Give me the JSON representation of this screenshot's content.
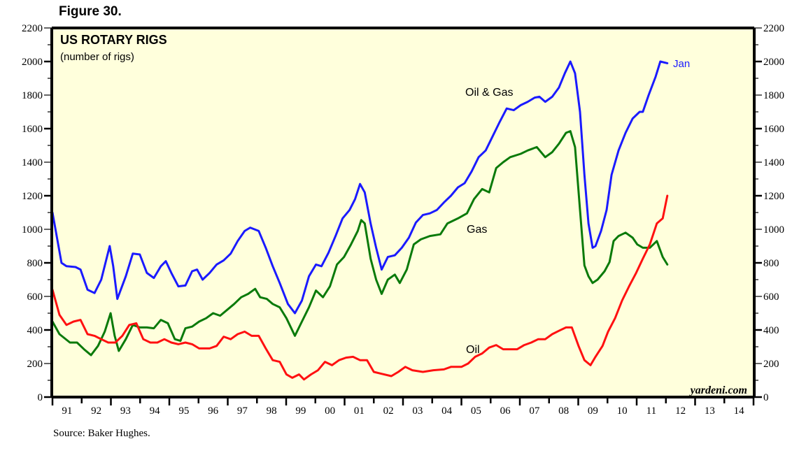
{
  "figure_label": "Figure 30.",
  "source": "Source: Baker Hughes.",
  "watermark": "yardeni.com",
  "colors": {
    "oil_gas": "#1a1aff",
    "gas": "#0a7a0a",
    "oil": "#ff1010",
    "background": "#ffffdc"
  },
  "chart_data": {
    "type": "line",
    "title": "US ROTARY RIGS",
    "subtitle": "(number of rigs)",
    "ylim": [
      0,
      2200
    ],
    "xlim": [
      1991,
      2015
    ],
    "y_ticks": [
      0,
      200,
      400,
      600,
      800,
      1000,
      1200,
      1400,
      1600,
      1800,
      2000,
      2200
    ],
    "x_tick_labels": [
      "91",
      "92",
      "93",
      "94",
      "95",
      "96",
      "97",
      "98",
      "99",
      "00",
      "01",
      "02",
      "03",
      "04",
      "05",
      "06",
      "07",
      "08",
      "09",
      "10",
      "11",
      "12",
      "13",
      "14"
    ],
    "grid": false,
    "end_label": "Jan",
    "series": [
      {
        "name": "Oil & Gas",
        "color": "#1a1aff",
        "points": [
          [
            1991.0,
            1100
          ],
          [
            1991.31,
            800
          ],
          [
            1991.48,
            780
          ],
          [
            1991.79,
            775
          ],
          [
            1991.96,
            760
          ],
          [
            1992.2,
            640
          ],
          [
            1992.44,
            620
          ],
          [
            1992.67,
            700
          ],
          [
            1992.96,
            900
          ],
          [
            1993.08,
            780
          ],
          [
            1993.22,
            585
          ],
          [
            1993.51,
            720
          ],
          [
            1993.75,
            855
          ],
          [
            1993.99,
            850
          ],
          [
            1994.23,
            740
          ],
          [
            1994.47,
            710
          ],
          [
            1994.71,
            780
          ],
          [
            1994.88,
            810
          ],
          [
            1995.07,
            740
          ],
          [
            1995.31,
            660
          ],
          [
            1995.55,
            665
          ],
          [
            1995.78,
            750
          ],
          [
            1995.95,
            760
          ],
          [
            1996.14,
            700
          ],
          [
            1996.38,
            740
          ],
          [
            1996.62,
            790
          ],
          [
            1996.86,
            815
          ],
          [
            1997.1,
            855
          ],
          [
            1997.34,
            930
          ],
          [
            1997.58,
            990
          ],
          [
            1997.77,
            1010
          ],
          [
            1998.06,
            990
          ],
          [
            1998.3,
            890
          ],
          [
            1998.54,
            780
          ],
          [
            1998.78,
            680
          ],
          [
            1999.06,
            555
          ],
          [
            1999.3,
            500
          ],
          [
            1999.54,
            575
          ],
          [
            1999.78,
            720
          ],
          [
            2000.02,
            790
          ],
          [
            2000.21,
            780
          ],
          [
            2000.45,
            860
          ],
          [
            2000.69,
            960
          ],
          [
            2000.93,
            1065
          ],
          [
            2001.17,
            1115
          ],
          [
            2001.36,
            1180
          ],
          [
            2001.53,
            1270
          ],
          [
            2001.69,
            1220
          ],
          [
            2001.89,
            1035
          ],
          [
            2002.08,
            890
          ],
          [
            2002.27,
            760
          ],
          [
            2002.48,
            835
          ],
          [
            2002.72,
            845
          ],
          [
            2002.96,
            890
          ],
          [
            2003.2,
            950
          ],
          [
            2003.44,
            1040
          ],
          [
            2003.68,
            1085
          ],
          [
            2003.92,
            1095
          ],
          [
            2004.16,
            1115
          ],
          [
            2004.4,
            1160
          ],
          [
            2004.64,
            1200
          ],
          [
            2004.88,
            1250
          ],
          [
            2005.11,
            1275
          ],
          [
            2005.35,
            1345
          ],
          [
            2005.59,
            1430
          ],
          [
            2005.83,
            1470
          ],
          [
            2006.07,
            1555
          ],
          [
            2006.31,
            1640
          ],
          [
            2006.55,
            1720
          ],
          [
            2006.79,
            1710
          ],
          [
            2007.03,
            1740
          ],
          [
            2007.27,
            1760
          ],
          [
            2007.51,
            1785
          ],
          [
            2007.67,
            1790
          ],
          [
            2007.87,
            1760
          ],
          [
            2008.11,
            1790
          ],
          [
            2008.34,
            1845
          ],
          [
            2008.54,
            1930
          ],
          [
            2008.73,
            2000
          ],
          [
            2008.89,
            1930
          ],
          [
            2009.06,
            1700
          ],
          [
            2009.21,
            1325
          ],
          [
            2009.35,
            1035
          ],
          [
            2009.49,
            890
          ],
          [
            2009.59,
            900
          ],
          [
            2009.78,
            990
          ],
          [
            2009.97,
            1115
          ],
          [
            2010.14,
            1325
          ],
          [
            2010.38,
            1470
          ],
          [
            2010.62,
            1575
          ],
          [
            2010.86,
            1660
          ],
          [
            2011.1,
            1700
          ],
          [
            2011.21,
            1700
          ],
          [
            2011.41,
            1800
          ],
          [
            2011.65,
            1910
          ],
          [
            2011.81,
            2000
          ],
          [
            2012.05,
            1990
          ]
        ]
      },
      {
        "name": "Gas",
        "color": "#0a7a0a",
        "points": [
          [
            1991.0,
            450
          ],
          [
            1991.24,
            375
          ],
          [
            1991.6,
            325
          ],
          [
            1991.84,
            325
          ],
          [
            1992.08,
            285
          ],
          [
            1992.32,
            250
          ],
          [
            1992.56,
            305
          ],
          [
            1992.79,
            390
          ],
          [
            1992.99,
            500
          ],
          [
            1993.13,
            365
          ],
          [
            1993.27,
            275
          ],
          [
            1993.51,
            345
          ],
          [
            1993.75,
            430
          ],
          [
            1993.99,
            415
          ],
          [
            1994.23,
            415
          ],
          [
            1994.47,
            410
          ],
          [
            1994.71,
            460
          ],
          [
            1994.95,
            440
          ],
          [
            1995.19,
            345
          ],
          [
            1995.38,
            335
          ],
          [
            1995.55,
            410
          ],
          [
            1995.78,
            420
          ],
          [
            1996.02,
            450
          ],
          [
            1996.26,
            470
          ],
          [
            1996.5,
            500
          ],
          [
            1996.74,
            485
          ],
          [
            1996.98,
            520
          ],
          [
            1997.22,
            555
          ],
          [
            1997.46,
            595
          ],
          [
            1997.7,
            615
          ],
          [
            1997.94,
            645
          ],
          [
            1998.11,
            595
          ],
          [
            1998.34,
            585
          ],
          [
            1998.54,
            555
          ],
          [
            1998.78,
            535
          ],
          [
            1999.01,
            470
          ],
          [
            1999.3,
            365
          ],
          [
            1999.54,
            450
          ],
          [
            1999.78,
            535
          ],
          [
            2000.02,
            635
          ],
          [
            2000.26,
            595
          ],
          [
            2000.5,
            660
          ],
          [
            2000.74,
            790
          ],
          [
            2000.98,
            835
          ],
          [
            2001.22,
            910
          ],
          [
            2001.45,
            990
          ],
          [
            2001.57,
            1055
          ],
          [
            2001.69,
            1035
          ],
          [
            2001.89,
            825
          ],
          [
            2002.08,
            700
          ],
          [
            2002.27,
            615
          ],
          [
            2002.48,
            700
          ],
          [
            2002.72,
            730
          ],
          [
            2002.89,
            680
          ],
          [
            2003.13,
            760
          ],
          [
            2003.37,
            910
          ],
          [
            2003.61,
            940
          ],
          [
            2003.92,
            960
          ],
          [
            2004.28,
            970
          ],
          [
            2004.52,
            1035
          ],
          [
            2004.88,
            1065
          ],
          [
            2005.19,
            1095
          ],
          [
            2005.43,
            1180
          ],
          [
            2005.71,
            1240
          ],
          [
            2005.95,
            1220
          ],
          [
            2006.19,
            1365
          ],
          [
            2006.43,
            1400
          ],
          [
            2006.67,
            1430
          ],
          [
            2007.03,
            1450
          ],
          [
            2007.27,
            1470
          ],
          [
            2007.58,
            1490
          ],
          [
            2007.87,
            1430
          ],
          [
            2008.11,
            1460
          ],
          [
            2008.34,
            1510
          ],
          [
            2008.58,
            1575
          ],
          [
            2008.73,
            1585
          ],
          [
            2008.89,
            1490
          ],
          [
            2009.06,
            1115
          ],
          [
            2009.21,
            785
          ],
          [
            2009.35,
            720
          ],
          [
            2009.49,
            680
          ],
          [
            2009.66,
            700
          ],
          [
            2009.9,
            750
          ],
          [
            2010.07,
            805
          ],
          [
            2010.21,
            930
          ],
          [
            2010.38,
            960
          ],
          [
            2010.62,
            980
          ],
          [
            2010.86,
            950
          ],
          [
            2011.02,
            910
          ],
          [
            2011.21,
            890
          ],
          [
            2011.45,
            890
          ],
          [
            2011.69,
            930
          ],
          [
            2011.89,
            835
          ],
          [
            2012.05,
            790
          ]
        ]
      },
      {
        "name": "Oil",
        "color": "#ff1010",
        "points": [
          [
            1991.0,
            640
          ],
          [
            1991.24,
            490
          ],
          [
            1991.48,
            430
          ],
          [
            1991.72,
            450
          ],
          [
            1991.96,
            460
          ],
          [
            1992.2,
            375
          ],
          [
            1992.44,
            365
          ],
          [
            1992.67,
            345
          ],
          [
            1992.91,
            325
          ],
          [
            1993.15,
            325
          ],
          [
            1993.39,
            365
          ],
          [
            1993.63,
            430
          ],
          [
            1993.87,
            440
          ],
          [
            1994.11,
            345
          ],
          [
            1994.35,
            325
          ],
          [
            1994.59,
            325
          ],
          [
            1994.83,
            345
          ],
          [
            1995.07,
            325
          ],
          [
            1995.31,
            315
          ],
          [
            1995.55,
            325
          ],
          [
            1995.78,
            315
          ],
          [
            1996.02,
            290
          ],
          [
            1996.38,
            290
          ],
          [
            1996.62,
            305
          ],
          [
            1996.86,
            360
          ],
          [
            1997.1,
            345
          ],
          [
            1997.34,
            375
          ],
          [
            1997.58,
            390
          ],
          [
            1997.82,
            365
          ],
          [
            1998.06,
            365
          ],
          [
            1998.3,
            290
          ],
          [
            1998.54,
            220
          ],
          [
            1998.78,
            210
          ],
          [
            1999.01,
            135
          ],
          [
            1999.21,
            115
          ],
          [
            1999.44,
            135
          ],
          [
            1999.61,
            105
          ],
          [
            1999.85,
            135
          ],
          [
            2000.09,
            160
          ],
          [
            2000.33,
            210
          ],
          [
            2000.57,
            190
          ],
          [
            2000.81,
            220
          ],
          [
            2001.05,
            235
          ],
          [
            2001.29,
            240
          ],
          [
            2001.53,
            220
          ],
          [
            2001.77,
            220
          ],
          [
            2002.0,
            150
          ],
          [
            2002.24,
            140
          ],
          [
            2002.6,
            125
          ],
          [
            2002.84,
            150
          ],
          [
            2003.08,
            180
          ],
          [
            2003.32,
            160
          ],
          [
            2003.68,
            150
          ],
          [
            2004.04,
            160
          ],
          [
            2004.4,
            165
          ],
          [
            2004.64,
            180
          ],
          [
            2005.0,
            180
          ],
          [
            2005.23,
            200
          ],
          [
            2005.47,
            240
          ],
          [
            2005.71,
            260
          ],
          [
            2005.95,
            295
          ],
          [
            2006.19,
            310
          ],
          [
            2006.43,
            285
          ],
          [
            2006.67,
            285
          ],
          [
            2006.91,
            285
          ],
          [
            2007.15,
            310
          ],
          [
            2007.39,
            325
          ],
          [
            2007.63,
            345
          ],
          [
            2007.87,
            345
          ],
          [
            2008.11,
            375
          ],
          [
            2008.34,
            395
          ],
          [
            2008.58,
            415
          ],
          [
            2008.78,
            415
          ],
          [
            2009.01,
            305
          ],
          [
            2009.21,
            220
          ],
          [
            2009.42,
            190
          ],
          [
            2009.59,
            240
          ],
          [
            2009.83,
            305
          ],
          [
            2010.02,
            390
          ],
          [
            2010.26,
            470
          ],
          [
            2010.5,
            575
          ],
          [
            2010.74,
            660
          ],
          [
            2010.98,
            740
          ],
          [
            2011.21,
            825
          ],
          [
            2011.45,
            910
          ],
          [
            2011.69,
            1035
          ],
          [
            2011.89,
            1065
          ],
          [
            2012.05,
            1200
          ]
        ]
      }
    ]
  }
}
